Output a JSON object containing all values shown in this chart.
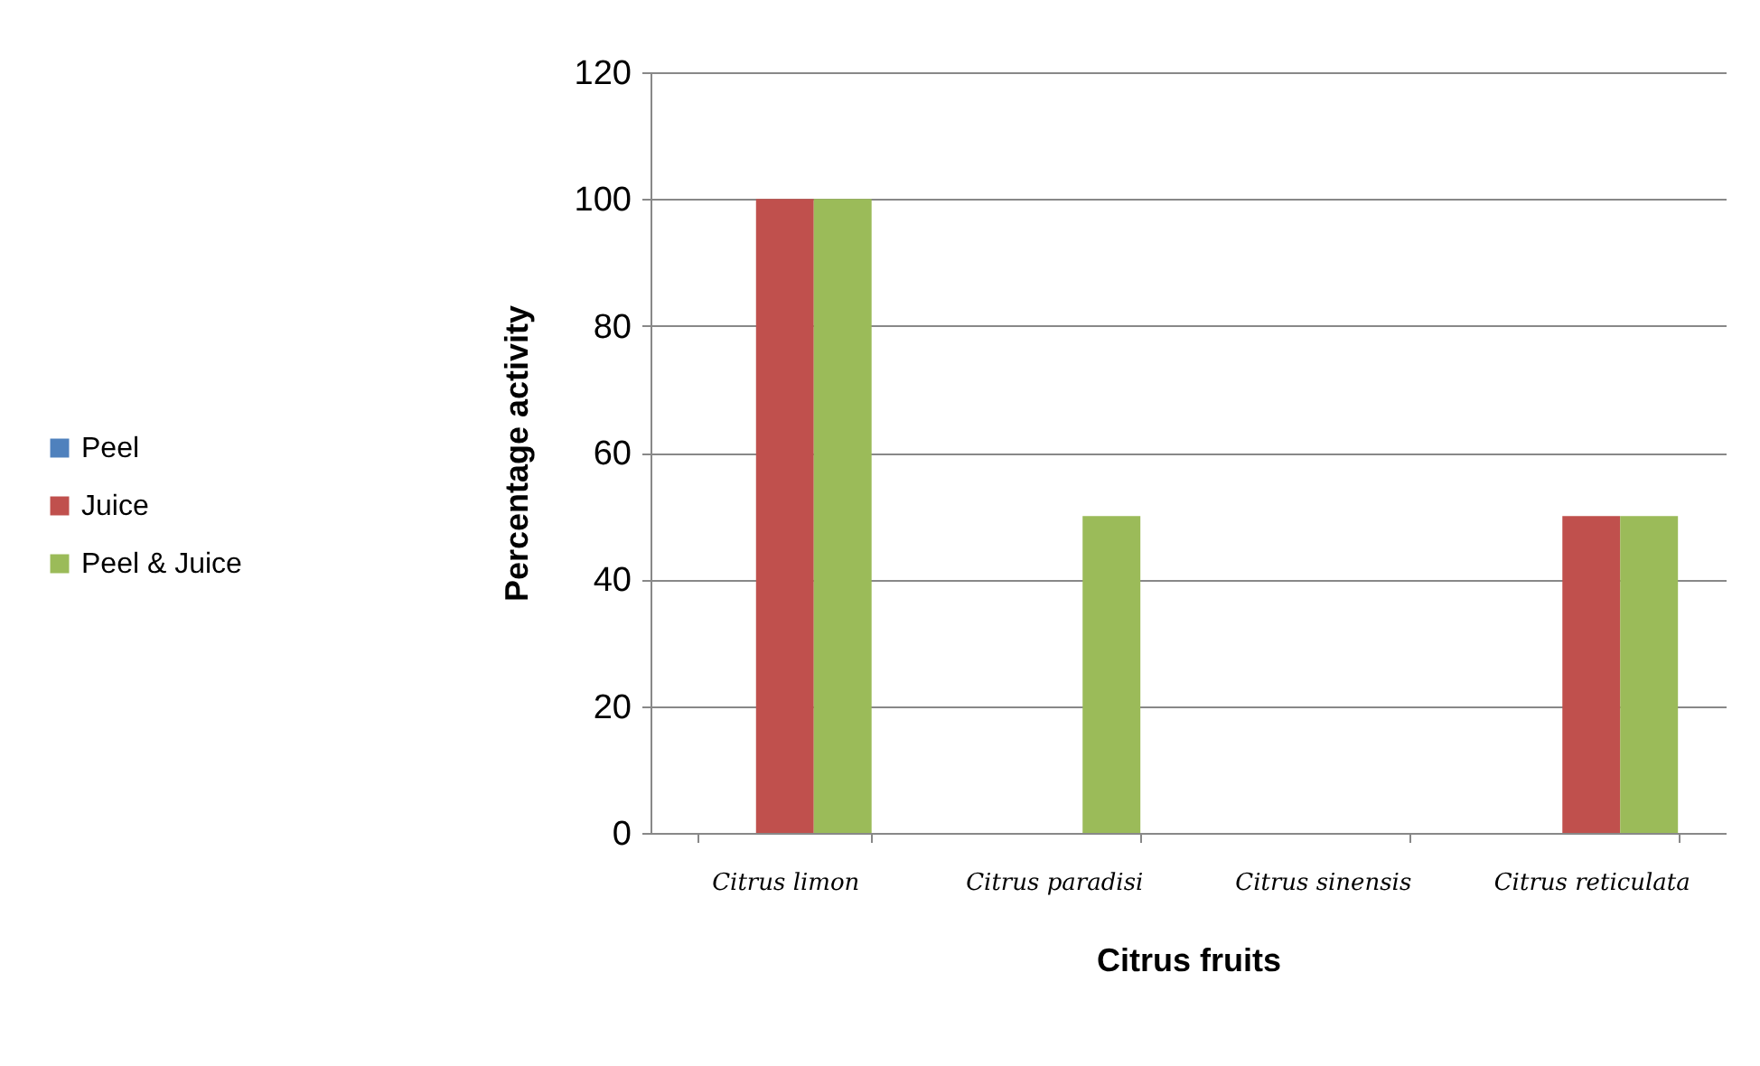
{
  "chart_data": {
    "type": "bar",
    "xlabel": "Citrus fruits",
    "ylabel": "Percentage activity",
    "categories": [
      "Citrus limon",
      "Citrus paradisi",
      "Citrus sinensis",
      "Citrus reticulata"
    ],
    "series": [
      {
        "name": "Peel",
        "color": "#4f81bd",
        "values": [
          0,
          0,
          0,
          0
        ]
      },
      {
        "name": "Juice",
        "color": "#c0504d",
        "values": [
          100,
          0,
          0,
          50
        ]
      },
      {
        "name": "Peel & Juice",
        "color": "#9bbb59",
        "values": [
          100,
          50,
          0,
          50
        ]
      }
    ],
    "ylim": [
      0,
      120
    ],
    "yticks": [
      0,
      20,
      40,
      60,
      80,
      100,
      120
    ],
    "grid": "y",
    "legend": "left"
  }
}
